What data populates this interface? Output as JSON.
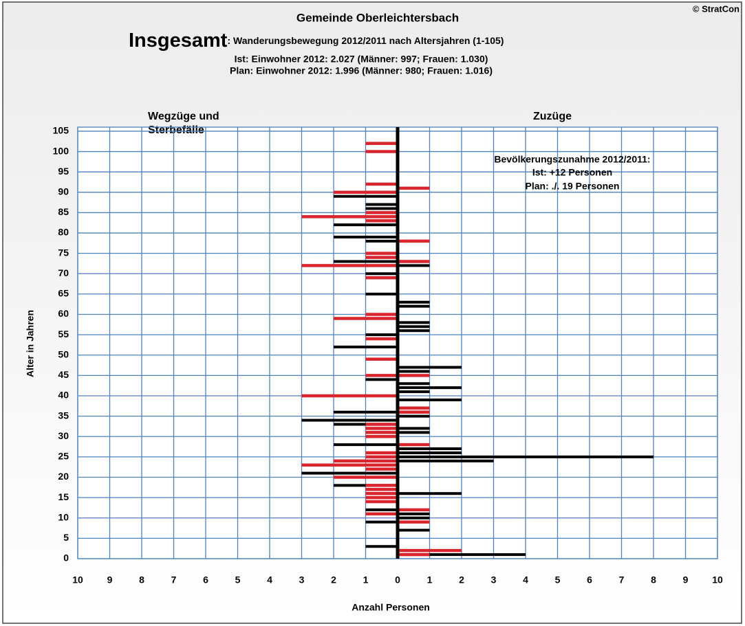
{
  "chart_data": {
    "type": "butterfly",
    "title": "Gemeinde Oberleichtersbach",
    "copyright": "© StratCon",
    "subtitle_lead": "Insgesamt",
    "subtitle_rest": ": Wanderungsbewegung 2012/2011 nach Altersjahren (1-105)",
    "subtitle_lines": [
      "Ist: Einwohner 2012: 2.027 (Männer: 997; Frauen: 1.030)",
      "Plan: Einwohner 2012: 1.996 (Männer: 980; Frauen: 1.016)"
    ],
    "left_label": [
      "Wegzüge und",
      "Sterbefälle"
    ],
    "right_label": "Zuzüge",
    "right_label_color": "#008000",
    "annotation": [
      "Bevölkerungszunahme 2012/2011:",
      "Ist:  +12 Personen",
      "Plan:  ./. 19 Personen"
    ],
    "y_label": "Alter in Jahren",
    "x_label": "Anzahl Personen",
    "y": [
      0,
      1,
      2,
      3,
      4,
      5,
      6,
      7,
      8,
      9,
      10,
      11,
      12,
      13,
      14,
      15,
      16,
      17,
      18,
      19,
      20,
      21,
      22,
      23,
      24,
      25,
      26,
      27,
      28,
      29,
      30,
      31,
      32,
      33,
      34,
      35,
      36,
      37,
      38,
      39,
      40,
      41,
      42,
      43,
      44,
      45,
      46,
      47,
      48,
      49,
      50,
      51,
      52,
      53,
      54,
      55,
      56,
      57,
      58,
      59,
      60,
      61,
      62,
      63,
      64,
      65,
      66,
      67,
      68,
      69,
      70,
      71,
      72,
      73,
      74,
      75,
      76,
      77,
      78,
      79,
      80,
      81,
      82,
      83,
      84,
      85,
      86,
      87,
      88,
      89,
      90,
      91,
      92,
      93,
      94,
      95,
      96,
      97,
      98,
      99,
      100,
      101,
      102,
      103,
      104,
      105
    ],
    "series": [
      {
        "color": "#000000",
        "values": [
          0,
          0,
          0,
          -1,
          0,
          0,
          0,
          0,
          0,
          -1,
          0,
          0,
          -1,
          0,
          0,
          0,
          0,
          0,
          -2,
          0,
          -2,
          -3,
          0,
          0,
          0,
          0,
          0,
          0,
          -2,
          0,
          0,
          0,
          0,
          -2,
          -3,
          0,
          -2,
          0,
          0,
          0,
          0,
          0,
          0,
          0,
          -1,
          0,
          0,
          0,
          0,
          0,
          0,
          0,
          -2,
          0,
          0,
          -1,
          0,
          0,
          0,
          0,
          0,
          0,
          0,
          0,
          0,
          -1,
          0,
          0,
          0,
          0,
          -1,
          0,
          0,
          -2,
          0,
          0,
          0,
          0,
          -1,
          -2,
          0,
          0,
          -2,
          0,
          0,
          0,
          -1,
          -1,
          0,
          -2,
          -1,
          0,
          0,
          0,
          0,
          0,
          0,
          0,
          0,
          0,
          0,
          0,
          0,
          0,
          0,
          0
        ]
      },
      {
        "color": "#d9262e",
        "values": [
          0,
          0,
          0,
          0,
          0,
          0,
          0,
          0,
          0,
          0,
          0,
          -1,
          0,
          0,
          -1,
          -1,
          -1,
          -1,
          -1,
          0,
          -2,
          0,
          -1,
          -3,
          -2,
          -1,
          -1,
          0,
          0,
          0,
          -1,
          -1,
          -1,
          -1,
          0,
          0,
          0,
          0,
          0,
          0,
          -3,
          0,
          0,
          0,
          0,
          -1,
          0,
          0,
          0,
          -1,
          0,
          0,
          0,
          0,
          -1,
          0,
          0,
          0,
          0,
          -2,
          -1,
          0,
          0,
          0,
          0,
          0,
          0,
          0,
          0,
          -1,
          0,
          0,
          -3,
          0,
          -1,
          -1,
          0,
          0,
          0,
          0,
          0,
          0,
          0,
          -1,
          -3,
          -1,
          0,
          0,
          0,
          0,
          -2,
          0,
          -1,
          0,
          0,
          0,
          0,
          0,
          0,
          0,
          -1,
          0,
          -1,
          0,
          0,
          0
        ]
      },
      {
        "color": "#000000",
        "values": [
          0,
          4,
          0,
          0,
          0,
          0,
          0,
          1,
          0,
          0,
          1,
          1,
          0,
          0,
          0,
          0,
          2,
          0,
          0,
          0,
          0,
          0,
          0,
          0,
          3,
          8,
          2,
          2,
          0,
          0,
          0,
          1,
          1,
          0,
          0,
          1,
          0,
          0,
          0,
          2,
          0,
          1,
          2,
          1,
          0,
          0,
          1,
          2,
          0,
          0,
          0,
          0,
          0,
          0,
          0,
          0,
          1,
          1,
          1,
          0,
          0,
          0,
          1,
          1,
          0,
          0,
          0,
          0,
          0,
          0,
          0,
          0,
          1,
          0,
          0,
          0,
          0,
          0,
          0,
          0,
          0,
          0,
          0,
          0,
          0,
          0,
          0,
          0,
          0,
          0,
          0,
          0,
          0,
          0,
          0,
          0,
          0,
          0,
          0,
          0,
          0,
          0,
          0,
          0,
          0,
          0
        ]
      },
      {
        "color": "#d9262e",
        "values": [
          0,
          1,
          2,
          0,
          0,
          0,
          0,
          0,
          0,
          1,
          0,
          0,
          1,
          0,
          0,
          0,
          0,
          0,
          0,
          0,
          0,
          0,
          0,
          0,
          0,
          0,
          0,
          0,
          1,
          0,
          0,
          0,
          0,
          0,
          0,
          0,
          1,
          1,
          0,
          0,
          0,
          0,
          0,
          0,
          0,
          1,
          0,
          0,
          0,
          0,
          0,
          0,
          0,
          0,
          0,
          0,
          0,
          0,
          0,
          0,
          0,
          0,
          0,
          0,
          0,
          0,
          0,
          0,
          0,
          0,
          0,
          0,
          0,
          1,
          0,
          0,
          0,
          0,
          1,
          0,
          0,
          0,
          0,
          0,
          0,
          0,
          0,
          0,
          0,
          0,
          0,
          1,
          0,
          0,
          0,
          0,
          0,
          0,
          0,
          0,
          0,
          0,
          0,
          0,
          0,
          0
        ]
      }
    ],
    "xlim": [
      -10,
      10
    ],
    "xticks": [
      {
        "value": -10,
        "label": "10"
      },
      {
        "value": -9,
        "label": "9"
      },
      {
        "value": -8,
        "label": "8"
      },
      {
        "value": -7,
        "label": "7"
      },
      {
        "value": -6,
        "label": "6"
      },
      {
        "value": -5,
        "label": "5"
      },
      {
        "value": -4,
        "label": "4"
      },
      {
        "value": -3,
        "label": "3"
      },
      {
        "value": -2,
        "label": "2"
      },
      {
        "value": -1,
        "label": "1"
      },
      0,
      1,
      2,
      3,
      4,
      5,
      6,
      7,
      8,
      9,
      10
    ],
    "ylim": [
      0,
      106
    ],
    "yticks": [
      0,
      5,
      10,
      15,
      20,
      25,
      30,
      35,
      40,
      45,
      50,
      55,
      60,
      65,
      70,
      75,
      80,
      85,
      90,
      95,
      100,
      105
    ],
    "grid": true,
    "grid_color": "#4f81bd"
  }
}
